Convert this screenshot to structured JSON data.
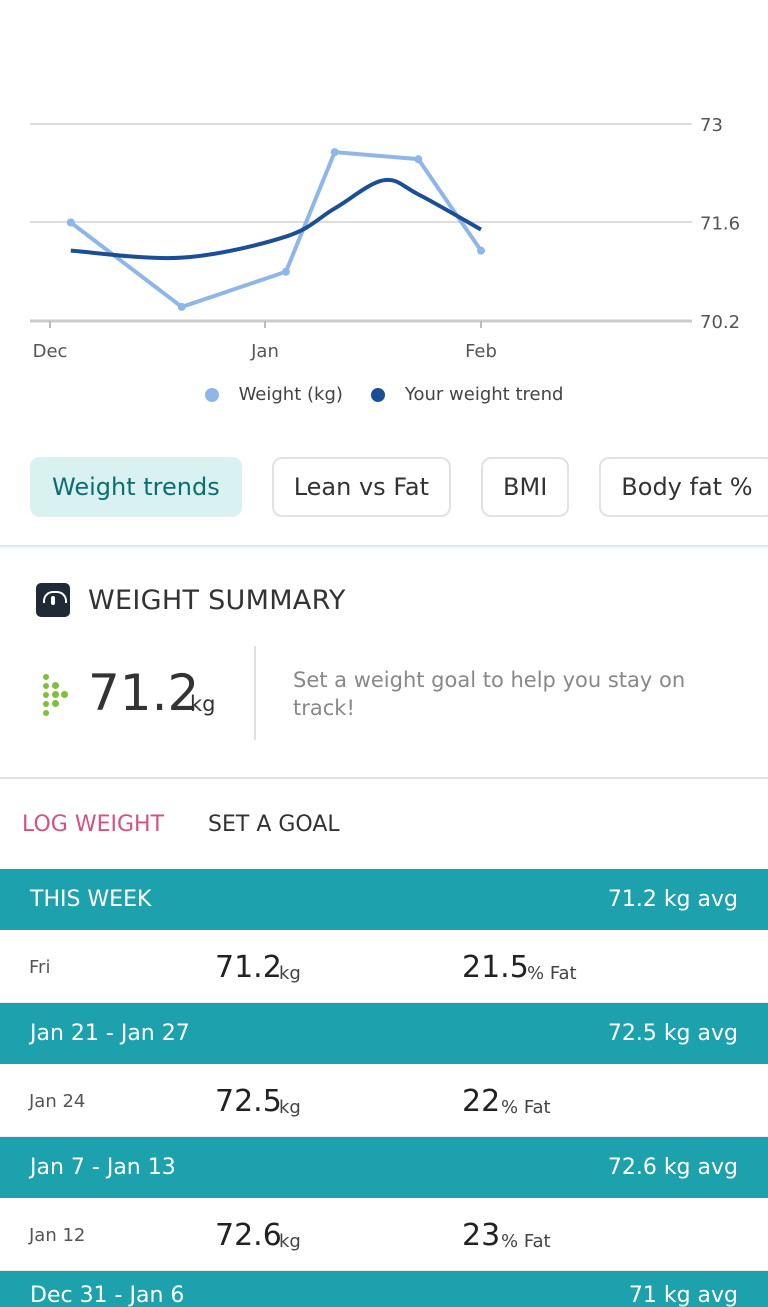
{
  "chart_data": {
    "type": "line",
    "x_ticks": [
      "Dec",
      "Jan",
      "Feb"
    ],
    "y_ticks": [
      "73",
      "71.6",
      "70.2"
    ],
    "ylim": [
      70.2,
      73
    ],
    "grid": true,
    "series": [
      {
        "name": "Weight (kg)",
        "color": "#8fb6e8",
        "points": [
          [
            "Dec 4",
            71.6
          ],
          [
            "Dec 20",
            70.4
          ],
          [
            "Jan 4",
            70.9
          ],
          [
            "Jan 11",
            72.6
          ],
          [
            "Jan 23",
            72.5
          ],
          [
            "Feb 1",
            71.2
          ]
        ]
      },
      {
        "name": "Your weight trend",
        "color": "#1b4e95",
        "points": [
          [
            "Dec 4",
            71.2
          ],
          [
            "Dec 20",
            71.1
          ],
          [
            "Jan 4",
            71.4
          ],
          [
            "Jan 11",
            71.8
          ],
          [
            "Jan 18",
            72.2
          ],
          [
            "Jan 23",
            72.0
          ],
          [
            "Feb 1",
            71.5
          ]
        ]
      }
    ]
  },
  "legend": {
    "weight": "Weight (kg)",
    "trend": "Your weight trend"
  },
  "tabs": [
    {
      "label": "Weight trends",
      "active": true
    },
    {
      "label": "Lean vs Fat",
      "active": false
    },
    {
      "label": "BMI",
      "active": false
    },
    {
      "label": "Body fat %",
      "active": false
    }
  ],
  "summary": {
    "title": "WEIGHT SUMMARY",
    "value": "71.2",
    "unit": "kg",
    "goal_text": "Set a weight goal to help you stay on track!"
  },
  "actions": {
    "log_weight": "LOG WEIGHT",
    "set_goal": "SET A GOAL"
  },
  "weeks": [
    {
      "label": "THIS WEEK",
      "avg": "71.2 kg avg",
      "entries": [
        {
          "day": "Fri",
          "weight": "71.2",
          "weight_unit": "kg",
          "fat": "21.5",
          "fat_unit": "% Fat"
        }
      ]
    },
    {
      "label": "Jan 21 - Jan 27",
      "avg": "72.5 kg avg",
      "entries": [
        {
          "day": "Jan 24",
          "weight": "72.5",
          "weight_unit": "kg",
          "fat": "22",
          "fat_unit": "% Fat"
        }
      ]
    },
    {
      "label": "Jan 7 - Jan 13",
      "avg": "72.6 kg avg",
      "entries": [
        {
          "day": "Jan 12",
          "weight": "72.6",
          "weight_unit": "kg",
          "fat": "23",
          "fat_unit": "% Fat"
        }
      ]
    },
    {
      "label": "Dec 31 - Jan 6",
      "avg": "71 kg avg",
      "entries": []
    }
  ]
}
